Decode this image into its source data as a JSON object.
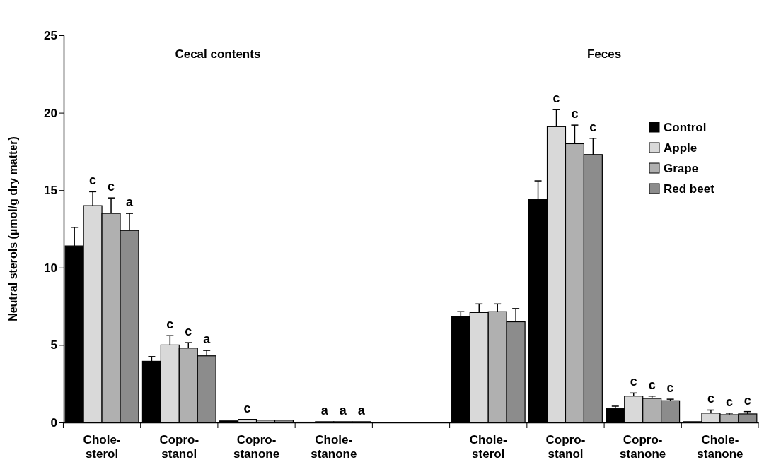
{
  "chart_data": {
    "type": "bar",
    "ylabel": "Neutral sterols (µmol/g dry matter)",
    "categories": [
      "Chole-\nsterol",
      "Copro-\nstanol",
      "Copro-\nstanone",
      "Chole-\nstanone",
      null,
      "Chole-\nsterol",
      "Copro-\nstanol",
      "Copro-\nstanone",
      "Chole-\nstanone"
    ],
    "series": [
      {
        "name": "Control",
        "color": "#000000",
        "values": [
          11.4,
          3.95,
          0.1,
          0.02,
          null,
          6.85,
          14.4,
          0.9,
          0.05
        ],
        "errors": [
          1.2,
          0.3,
          null,
          null,
          null,
          0.3,
          1.2,
          0.15,
          null
        ],
        "value_labels": [
          null,
          null,
          null,
          null,
          null,
          null,
          null,
          null,
          null
        ]
      },
      {
        "name": "Apple",
        "color": "#d9d9d9",
        "values": [
          14.0,
          5.0,
          0.2,
          0.05,
          null,
          7.1,
          19.1,
          1.7,
          0.6
        ],
        "errors": [
          0.9,
          0.6,
          null,
          null,
          null,
          0.55,
          1.1,
          0.2,
          0.2
        ],
        "value_labels": [
          "c",
          "c",
          "c",
          "a",
          null,
          null,
          "c",
          "c",
          "c"
        ]
      },
      {
        "name": "Grape",
        "color": "#b0b0b0",
        "values": [
          13.5,
          4.8,
          0.15,
          0.05,
          null,
          7.15,
          18.0,
          1.55,
          0.5
        ],
        "errors": [
          1.0,
          0.35,
          null,
          null,
          null,
          0.5,
          1.2,
          0.15,
          0.1
        ],
        "value_labels": [
          "c",
          "c",
          null,
          "a",
          null,
          null,
          "c",
          "c",
          "c"
        ]
      },
      {
        "name": "Red beet",
        "color": "#8c8c8c",
        "values": [
          12.4,
          4.3,
          0.15,
          0.05,
          null,
          6.5,
          17.3,
          1.4,
          0.55
        ],
        "errors": [
          1.1,
          0.35,
          null,
          null,
          null,
          0.85,
          1.05,
          0.1,
          0.15
        ],
        "value_labels": [
          "a",
          "a",
          null,
          "a",
          null,
          null,
          "c",
          "c",
          "c"
        ]
      }
    ],
    "ylim": [
      0,
      25
    ],
    "yticks": [
      0,
      5,
      10,
      15,
      20,
      25
    ],
    "grid": false,
    "legend": "right",
    "annotations": [
      "Cecal contents",
      "Feces"
    ]
  }
}
